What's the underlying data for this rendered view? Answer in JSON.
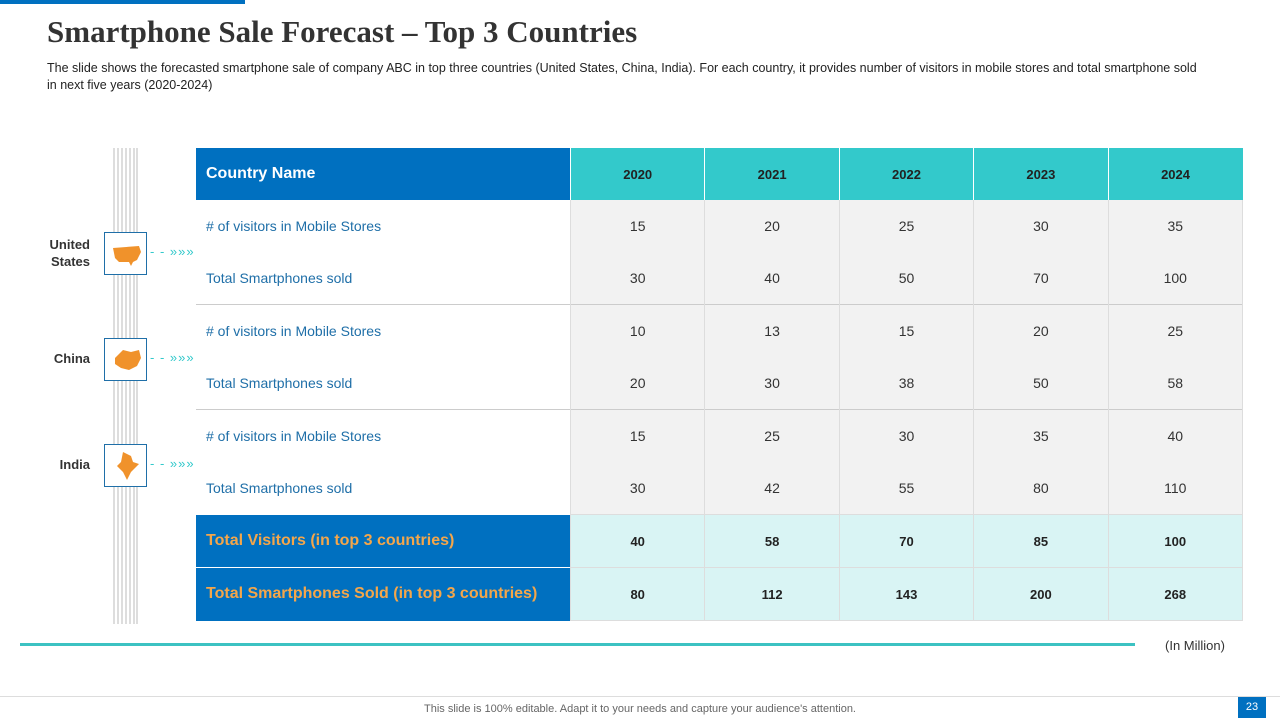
{
  "title": "Smartphone Sale Forecast – Top 3 Countries",
  "description": "The slide shows the forecasted smartphone sale of company ABC in top three countries (United States, China, India). For each country, it provides number of visitors in mobile stores and total smartphone sold in next five years (2020-2024)",
  "table": {
    "header": [
      "Country Name",
      "2020",
      "2021",
      "2022",
      "2023",
      "2024"
    ],
    "groups": [
      {
        "country": "United States",
        "rows": [
          {
            "label": "# of visitors in Mobile Stores",
            "values": [
              15,
              20,
              25,
              30,
              35
            ]
          },
          {
            "label": "Total Smartphones  sold",
            "values": [
              30,
              40,
              50,
              70,
              100
            ]
          }
        ]
      },
      {
        "country": "China",
        "rows": [
          {
            "label": "# of visitors in Mobile Stores",
            "values": [
              10,
              13,
              15,
              20,
              25
            ]
          },
          {
            "label": "Total Smartphones  sold",
            "values": [
              20,
              30,
              38,
              50,
              58
            ]
          }
        ]
      },
      {
        "country": "India",
        "rows": [
          {
            "label": "# of visitors in Mobile Stores",
            "values": [
              15,
              25,
              30,
              35,
              40
            ]
          },
          {
            "label": "Total Smartphones  sold",
            "values": [
              30,
              42,
              55,
              80,
              110
            ]
          }
        ]
      }
    ],
    "totals": [
      {
        "label": "Total Visitors (in top 3 countries)",
        "values": [
          40,
          58,
          70,
          85,
          100
        ]
      },
      {
        "label": "Total Smartphones Sold (in top 3 countries)",
        "values": [
          80,
          112,
          143,
          200,
          268
        ]
      }
    ]
  },
  "unit_note": "(In Million)",
  "footer": "This slide is 100% editable. Adapt it to your needs and capture your audience's attention.",
  "page_number": "23"
}
